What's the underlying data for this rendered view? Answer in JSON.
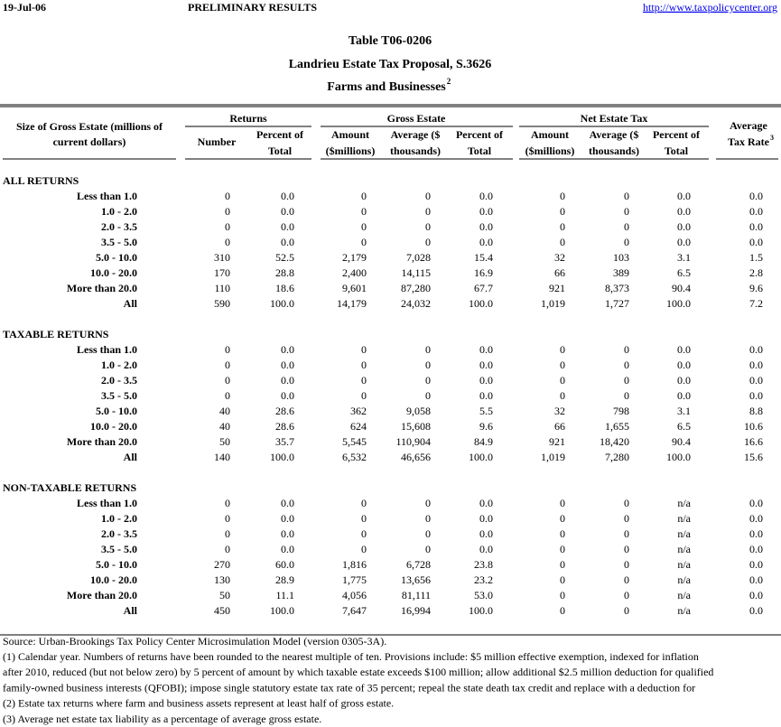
{
  "header": {
    "date": "19-Jul-06",
    "status": "PRELIMINARY RESULTS",
    "link": "http://www.taxpolicycenter.org"
  },
  "title": {
    "table_id": "Table T06-0206",
    "proposal": "Landrieu Estate Tax Proposal, S.3626",
    "subtitle": "Farms and Businesses",
    "subtitle_note": "2"
  },
  "columns": {
    "size_header": [
      "Size of Gross Estate (millions of",
      "current dollars)"
    ],
    "groups": [
      "Returns",
      "Gross Estate",
      "Net Estate Tax"
    ],
    "subheaders": [
      [
        "Number"
      ],
      [
        "Percent of",
        "Total"
      ],
      [
        "Amount",
        "($millions)"
      ],
      [
        "Average ($",
        "thousands)"
      ],
      [
        "Percent of",
        "Total"
      ],
      [
        "Amount",
        "($millions)"
      ],
      [
        "Average ($",
        "thousands)"
      ],
      [
        "Percent of",
        "Total"
      ],
      [
        "Average",
        "Tax Rate"
      ]
    ],
    "rate_note": "3"
  },
  "sections": [
    {
      "title": "ALL RETURNS",
      "rows": [
        [
          "Less than 1.0",
          "0",
          "0.0",
          "0",
          "0",
          "0.0",
          "0",
          "0",
          "0.0",
          "0.0"
        ],
        [
          "1.0 - 2.0",
          "0",
          "0.0",
          "0",
          "0",
          "0.0",
          "0",
          "0",
          "0.0",
          "0.0"
        ],
        [
          "2.0 - 3.5",
          "0",
          "0.0",
          "0",
          "0",
          "0.0",
          "0",
          "0",
          "0.0",
          "0.0"
        ],
        [
          "3.5 - 5.0",
          "0",
          "0.0",
          "0",
          "0",
          "0.0",
          "0",
          "0",
          "0.0",
          "0.0"
        ],
        [
          "5.0 - 10.0",
          "310",
          "52.5",
          "2,179",
          "7,028",
          "15.4",
          "32",
          "103",
          "3.1",
          "1.5"
        ],
        [
          "10.0 - 20.0",
          "170",
          "28.8",
          "2,400",
          "14,115",
          "16.9",
          "66",
          "389",
          "6.5",
          "2.8"
        ],
        [
          "More than 20.0",
          "110",
          "18.6",
          "9,601",
          "87,280",
          "67.7",
          "921",
          "8,373",
          "90.4",
          "9.6"
        ],
        [
          "All",
          "590",
          "100.0",
          "14,179",
          "24,032",
          "100.0",
          "1,019",
          "1,727",
          "100.0",
          "7.2"
        ]
      ]
    },
    {
      "title": "TAXABLE RETURNS",
      "rows": [
        [
          "Less than 1.0",
          "0",
          "0.0",
          "0",
          "0",
          "0.0",
          "0",
          "0",
          "0.0",
          "0.0"
        ],
        [
          "1.0 - 2.0",
          "0",
          "0.0",
          "0",
          "0",
          "0.0",
          "0",
          "0",
          "0.0",
          "0.0"
        ],
        [
          "2.0 - 3.5",
          "0",
          "0.0",
          "0",
          "0",
          "0.0",
          "0",
          "0",
          "0.0",
          "0.0"
        ],
        [
          "3.5 - 5.0",
          "0",
          "0.0",
          "0",
          "0",
          "0.0",
          "0",
          "0",
          "0.0",
          "0.0"
        ],
        [
          "5.0 - 10.0",
          "40",
          "28.6",
          "362",
          "9,058",
          "5.5",
          "32",
          "798",
          "3.1",
          "8.8"
        ],
        [
          "10.0 - 20.0",
          "40",
          "28.6",
          "624",
          "15,608",
          "9.6",
          "66",
          "1,655",
          "6.5",
          "10.6"
        ],
        [
          "More than 20.0",
          "50",
          "35.7",
          "5,545",
          "110,904",
          "84.9",
          "921",
          "18,420",
          "90.4",
          "16.6"
        ],
        [
          "All",
          "140",
          "100.0",
          "6,532",
          "46,656",
          "100.0",
          "1,019",
          "7,280",
          "100.0",
          "15.6"
        ]
      ]
    },
    {
      "title": "NON-TAXABLE RETURNS",
      "rows": [
        [
          "Less than 1.0",
          "0",
          "0.0",
          "0",
          "0",
          "0.0",
          "0",
          "0",
          "n/a",
          "0.0"
        ],
        [
          "1.0 - 2.0",
          "0",
          "0.0",
          "0",
          "0",
          "0.0",
          "0",
          "0",
          "n/a",
          "0.0"
        ],
        [
          "2.0 - 3.5",
          "0",
          "0.0",
          "0",
          "0",
          "0.0",
          "0",
          "0",
          "n/a",
          "0.0"
        ],
        [
          "3.5 - 5.0",
          "0",
          "0.0",
          "0",
          "0",
          "0.0",
          "0",
          "0",
          "n/a",
          "0.0"
        ],
        [
          "5.0 - 10.0",
          "270",
          "60.0",
          "1,816",
          "6,728",
          "23.8",
          "0",
          "0",
          "n/a",
          "0.0"
        ],
        [
          "10.0 - 20.0",
          "130",
          "28.9",
          "1,775",
          "13,656",
          "23.2",
          "0",
          "0",
          "n/a",
          "0.0"
        ],
        [
          "More than 20.0",
          "50",
          "11.1",
          "4,056",
          "81,111",
          "53.0",
          "0",
          "0",
          "n/a",
          "0.0"
        ],
        [
          "All",
          "450",
          "100.0",
          "7,647",
          "16,994",
          "100.0",
          "0",
          "0",
          "n/a",
          "0.0"
        ]
      ]
    }
  ],
  "footnotes": [
    "Source: Urban-Brookings Tax Policy Center Microsimulation Model (version 0305-3A).",
    "(1) Calendar year. Numbers of returns have been rounded to the nearest multiple of ten. Provisions include: $5 million effective exemption, indexed for inflation",
    "after 2010, reduced (but not below zero) by 5 percent of amount by which taxable estate exceeds $100 million; allow additional $2.5 million deduction for qualified",
    "family-owned business interests (QFOBI); impose single statutory estate tax rate of 35 percent; repeal the state death tax credit and replace with a deduction for",
    "(2) Estate tax returns where farm and business assets represent at least half of gross estate.",
    "(3) Average net estate tax liability as a percentage of average gross estate."
  ]
}
